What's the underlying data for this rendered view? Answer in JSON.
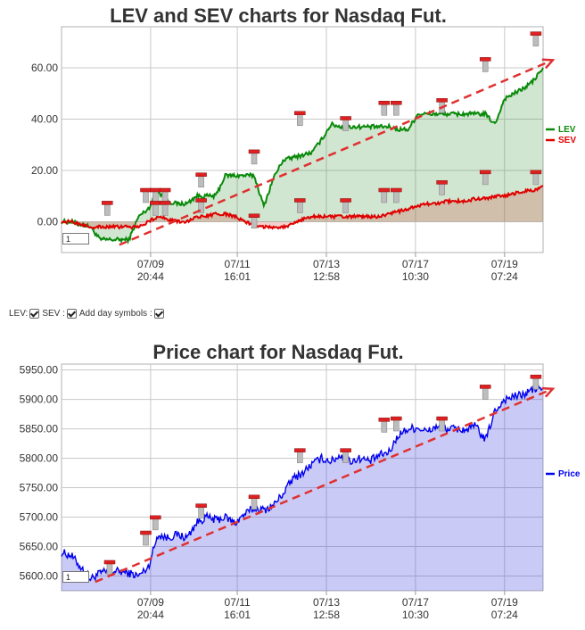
{
  "chart_data": [
    {
      "type": "line",
      "title": "LEV and SEV charts for Nasdaq Fut.",
      "x_tick_labels": [
        {
          "date": "07/09",
          "time": "20:44"
        },
        {
          "date": "07/11",
          "time": "16:01"
        },
        {
          "date": "07/13",
          "time": "12:58"
        },
        {
          "date": "07/17",
          "time": "10:30"
        },
        {
          "date": "07/19",
          "time": "07:24"
        }
      ],
      "y_ticks": [
        0,
        20,
        40,
        60
      ],
      "y_tick_labels": [
        "0.00",
        "20.00",
        "40.00",
        "60.00"
      ],
      "ylim": [
        -12,
        76
      ],
      "legend": {
        "position": "right"
      },
      "series": [
        {
          "name": "LEV",
          "color": "#0a8a0a",
          "x": [
            0,
            2,
            4,
            6,
            8,
            10,
            12,
            14,
            16,
            18,
            20,
            22,
            24,
            26,
            28,
            30,
            32,
            34,
            36,
            38,
            40,
            42,
            44,
            46,
            48,
            50,
            52,
            54,
            56,
            58,
            60,
            62,
            64,
            66,
            68,
            70,
            72,
            74,
            76,
            78,
            80,
            82,
            84,
            86,
            88,
            90,
            92,
            94,
            96,
            98,
            100
          ],
          "values": [
            0,
            0,
            -1,
            -2,
            -7,
            -7,
            -7,
            -7,
            2,
            5,
            12,
            8,
            7,
            7,
            10,
            10,
            10,
            18,
            18,
            18,
            18,
            6,
            17,
            24,
            25,
            26,
            27,
            32,
            38,
            37,
            37,
            37,
            37,
            37,
            37,
            36,
            36,
            42,
            42,
            42,
            42,
            42,
            42,
            42,
            42,
            38,
            48,
            50,
            52,
            55,
            60
          ]
        },
        {
          "name": "SEV",
          "color": "#e00000",
          "x": [
            0,
            2,
            4,
            6,
            8,
            10,
            12,
            14,
            16,
            18,
            20,
            22,
            24,
            26,
            28,
            30,
            32,
            34,
            36,
            38,
            40,
            42,
            44,
            46,
            48,
            50,
            52,
            54,
            56,
            58,
            60,
            62,
            64,
            66,
            68,
            70,
            72,
            74,
            76,
            78,
            80,
            82,
            84,
            86,
            88,
            90,
            92,
            94,
            96,
            98,
            100
          ],
          "values": [
            0,
            0,
            -1,
            -2,
            -2,
            -2,
            -2,
            -2,
            -2,
            0,
            2,
            1,
            0,
            0,
            2,
            2,
            3,
            3,
            2,
            0,
            -1,
            -2,
            -2,
            -2,
            -1,
            1,
            2,
            2,
            2,
            2,
            2,
            2,
            2,
            2,
            3,
            4,
            5,
            6,
            7,
            7,
            8,
            8,
            8,
            9,
            9,
            10,
            10,
            11,
            12,
            12,
            14
          ]
        }
      ],
      "trend_arrow": {
        "x": [
          12,
          102
        ],
        "values": [
          -9,
          63
        ],
        "color": "#e03030"
      },
      "markers": [
        {
          "x": 9.5,
          "value": 7
        },
        {
          "x": 17.5,
          "value": 12
        },
        {
          "x": 19.5,
          "value": 12
        },
        {
          "x": 21.5,
          "value": 12
        },
        {
          "x": 19.5,
          "value": 7
        },
        {
          "x": 21.5,
          "value": 7
        },
        {
          "x": 29,
          "value": 18
        },
        {
          "x": 29,
          "value": 8
        },
        {
          "x": 40,
          "value": 27
        },
        {
          "x": 40,
          "value": 2
        },
        {
          "x": 49.5,
          "value": 42
        },
        {
          "x": 49.5,
          "value": 8
        },
        {
          "x": 59,
          "value": 40
        },
        {
          "x": 59,
          "value": 8
        },
        {
          "x": 67,
          "value": 46
        },
        {
          "x": 69.5,
          "value": 46
        },
        {
          "x": 67,
          "value": 12
        },
        {
          "x": 69.5,
          "value": 12
        },
        {
          "x": 79,
          "value": 47
        },
        {
          "x": 79,
          "value": 15
        },
        {
          "x": 88,
          "value": 63
        },
        {
          "x": 88,
          "value": 19
        },
        {
          "x": 98.5,
          "value": 73
        },
        {
          "x": 98.5,
          "value": 19
        }
      ]
    },
    {
      "type": "line",
      "title": "Price chart for Nasdaq Fut.",
      "x_tick_labels": [
        {
          "date": "07/09",
          "time": "20:44"
        },
        {
          "date": "07/11",
          "time": "16:01"
        },
        {
          "date": "07/13",
          "time": "12:58"
        },
        {
          "date": "07/17",
          "time": "10:30"
        },
        {
          "date": "07/19",
          "time": "07:24"
        }
      ],
      "y_ticks": [
        5600,
        5650,
        5700,
        5750,
        5800,
        5850,
        5900,
        5950
      ],
      "y_tick_labels": [
        "5600.00",
        "5650.00",
        "5700.00",
        "5750.00",
        "5800.00",
        "5850.00",
        "5900.00",
        "5950.00"
      ],
      "ylim": [
        5575,
        5960
      ],
      "legend": {
        "position": "right"
      },
      "series": [
        {
          "name": "Price",
          "color": "#0000ee",
          "x": [
            0,
            2,
            4,
            6,
            8,
            10,
            12,
            14,
            16,
            18,
            20,
            22,
            24,
            26,
            28,
            30,
            32,
            34,
            36,
            38,
            40,
            42,
            44,
            46,
            48,
            50,
            52,
            54,
            56,
            58,
            60,
            62,
            64,
            66,
            68,
            70,
            72,
            74,
            76,
            78,
            80,
            82,
            84,
            86,
            88,
            90,
            92,
            94,
            96,
            98,
            100
          ],
          "values": [
            5640,
            5635,
            5615,
            5595,
            5605,
            5608,
            5608,
            5605,
            5600,
            5615,
            5670,
            5665,
            5670,
            5665,
            5690,
            5700,
            5695,
            5700,
            5690,
            5705,
            5715,
            5712,
            5720,
            5740,
            5765,
            5775,
            5790,
            5800,
            5795,
            5805,
            5795,
            5800,
            5795,
            5805,
            5810,
            5840,
            5850,
            5852,
            5845,
            5855,
            5850,
            5850,
            5848,
            5855,
            5830,
            5880,
            5900,
            5905,
            5908,
            5918,
            5920
          ]
        }
      ],
      "trend_arrow": {
        "x": [
          7,
          102
        ],
        "values": [
          5590,
          5918
        ],
        "color": "#e03030"
      },
      "markers": [
        {
          "x": 10,
          "value": 5622
        },
        {
          "x": 17.5,
          "value": 5672
        },
        {
          "x": 19.5,
          "value": 5698
        },
        {
          "x": 29,
          "value": 5718
        },
        {
          "x": 40,
          "value": 5733
        },
        {
          "x": 49.5,
          "value": 5812
        },
        {
          "x": 59,
          "value": 5812
        },
        {
          "x": 67,
          "value": 5864
        },
        {
          "x": 69.5,
          "value": 5866
        },
        {
          "x": 79,
          "value": 5866
        },
        {
          "x": 88,
          "value": 5920
        },
        {
          "x": 98.5,
          "value": 5937
        }
      ]
    }
  ],
  "controls": {
    "lev_label": "LEV:",
    "sev_label": "SEV :",
    "day_symbols_label": "Add day symbols :"
  },
  "zoom": {
    "lev_value": "1",
    "price_value": "1"
  }
}
